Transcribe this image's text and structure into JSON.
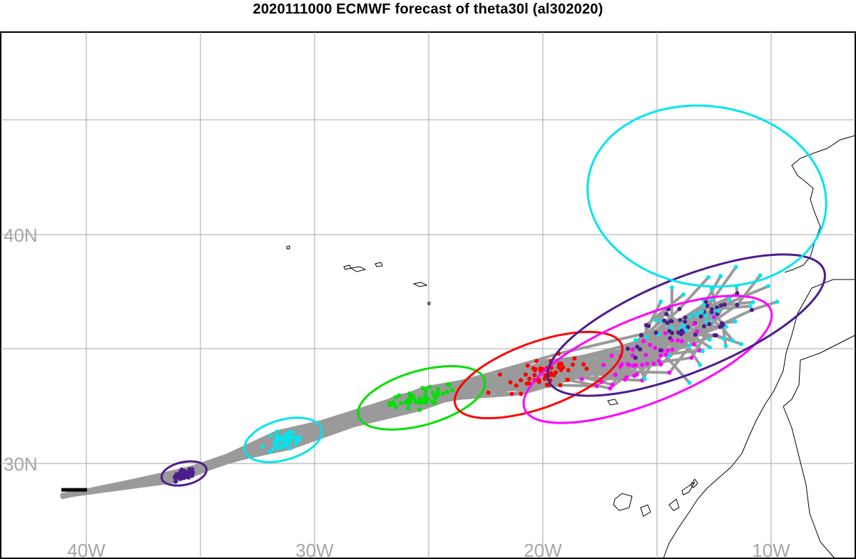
{
  "title": "2020111000 ECMWF forecast of theta30l (al302020)",
  "lon_labels": [
    "40W",
    "30W",
    "20W",
    "10W"
  ],
  "lat_labels": [
    "40N",
    "30N"
  ],
  "colors": {
    "tracks": "#9a9a9a",
    "grid": "#a6a6a6",
    "coast": "#000000",
    "analysis": "#000000",
    "steps": [
      "#4b1e8c",
      "#00e5ee",
      "#00e000",
      "#ff0000",
      "#ff00ff",
      "#4b1e8c",
      "#00e5ee"
    ]
  }
}
